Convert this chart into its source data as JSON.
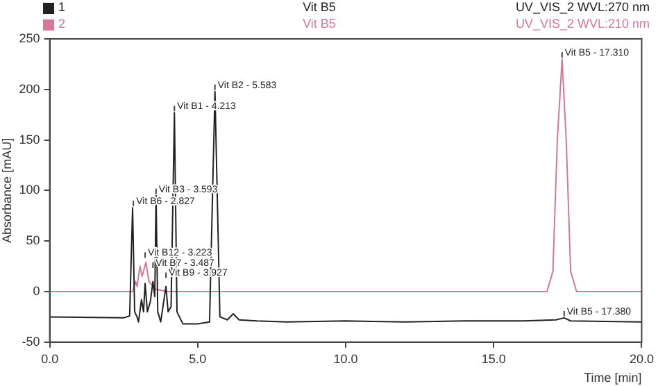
{
  "chart_data": {
    "type": "line",
    "xlabel": "Time [min]",
    "ylabel": "Absorbance [mAU]",
    "xlim": [
      0,
      20
    ],
    "xticks": [
      {
        "value": 0,
        "label": "0.0"
      },
      {
        "value": 5,
        "label": "5.0"
      },
      {
        "value": 10,
        "label": "10.0"
      },
      {
        "value": 15,
        "label": "15.0"
      },
      {
        "value": 20,
        "label": "20.0"
      }
    ],
    "ylim": [
      -50,
      250
    ],
    "yticks": [
      -50,
      0,
      50,
      100,
      150,
      200,
      250
    ],
    "grid": false,
    "legend": "top",
    "marker": "none",
    "line_style": "solid",
    "series": [
      {
        "name": "1",
        "color": "#222222",
        "x": [
          0,
          2.5,
          2.7,
          2.8,
          2.87,
          2.95,
          3.0,
          3.1,
          3.17,
          3.223,
          3.3,
          3.4,
          3.487,
          3.55,
          3.593,
          3.65,
          3.75,
          3.85,
          3.927,
          4.0,
          4.1,
          4.213,
          4.3,
          4.5,
          5.0,
          5.4,
          5.583,
          5.75,
          6.0,
          6.2,
          6.4,
          7,
          8,
          10,
          12,
          14,
          16,
          17.1,
          17.38,
          17.6,
          20
        ],
        "values": [
          -25,
          -26,
          -24,
          83,
          -20,
          -25,
          -30,
          -8,
          -20,
          8,
          -20,
          -10,
          10,
          -5,
          95,
          -20,
          -30,
          -10,
          5,
          -20,
          -15,
          177,
          -20,
          -32,
          -32,
          -30,
          198,
          -25,
          -28,
          -22,
          -28,
          -29,
          -30,
          -29,
          -30,
          -29,
          -29,
          -28,
          -26,
          -29,
          -30
        ]
      },
      {
        "name": "2",
        "color": "#d4779b",
        "x": [
          0,
          2.8,
          2.9,
          2.95,
          3.05,
          3.12,
          3.25,
          3.35,
          3.5,
          3.6,
          4,
          16.8,
          17.0,
          17.15,
          17.31,
          17.45,
          17.6,
          17.8,
          20
        ],
        "values": [
          0,
          0,
          10,
          5,
          25,
          15,
          29,
          10,
          5,
          2,
          0,
          0,
          20,
          150,
          230,
          150,
          20,
          0,
          0
        ]
      }
    ],
    "annotations": [
      "Vit B5",
      "UV_VIS_2 WVL:270 nm",
      "Vit B5",
      "UV_VIS_2 WVL:210 nm",
      {
        "text": "Vit B6 - 2.827",
        "x": 2.827,
        "y": 83
      },
      {
        "text": "Vit B3 - 3.593",
        "x": 3.593,
        "y": 95
      },
      {
        "text": "Vit B1 - 4.213",
        "x": 4.213,
        "y": 177
      },
      {
        "text": "Vit B2 - 5.583",
        "x": 5.583,
        "y": 198
      },
      {
        "text": "Vit B9 - 3.927",
        "x": 3.927,
        "y": 12
      },
      {
        "text": "Vit B7 - 3.487",
        "x": 3.487,
        "y": 22
      },
      {
        "text": "Vit B12 - 3.223",
        "x": 3.223,
        "y": 32
      },
      {
        "text": "Vit B5 - 17.310",
        "x": 17.31,
        "y": 230
      },
      {
        "text": "Vit B5 - 17.380",
        "x": 17.38,
        "y": -26
      }
    ]
  }
}
